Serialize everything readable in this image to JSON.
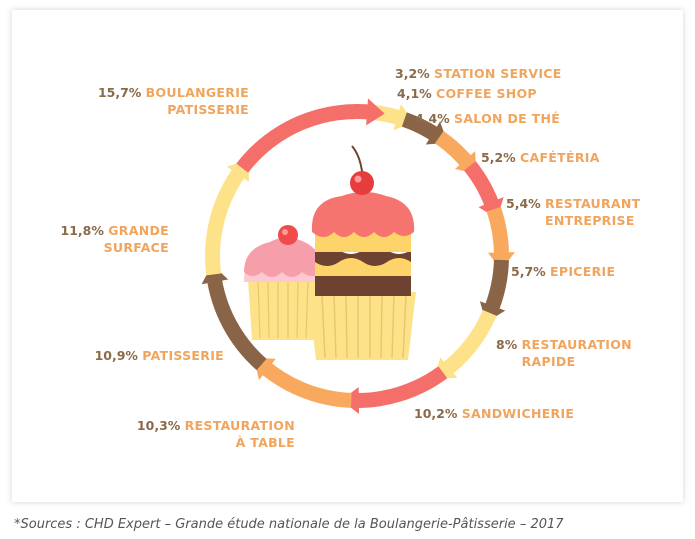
{
  "chart_data": {
    "type": "pie",
    "title": "",
    "slices": [
      {
        "value": 3.2,
        "value_label": "3,2%",
        "lines": [
          "STATION SERVICE"
        ],
        "color": "#fde28a"
      },
      {
        "value": 4.1,
        "value_label": "4,1%",
        "lines": [
          "COFFEE SHOP"
        ],
        "color": "#8a6446"
      },
      {
        "value": 4.4,
        "value_label": "4,4%",
        "lines": [
          "SALON DE THÉ"
        ],
        "color": "#f8a95e"
      },
      {
        "value": 5.2,
        "value_label": "5,2%",
        "lines": [
          "CAFÉTÉRIA"
        ],
        "color": "#f56f6a"
      },
      {
        "value": 5.4,
        "value_label": "5,4%",
        "lines": [
          "RESTAURANT",
          "ENTREPRISE"
        ],
        "color": "#f8a95e"
      },
      {
        "value": 5.7,
        "value_label": "5,7%",
        "lines": [
          "EPICERIE"
        ],
        "color": "#8a6446"
      },
      {
        "value": 8.0,
        "value_label": "8%",
        "lines": [
          "RESTAURATION",
          "RAPIDE"
        ],
        "color": "#fde28a"
      },
      {
        "value": 10.2,
        "value_label": "10,2%",
        "lines": [
          "SANDWICHERIE"
        ],
        "color": "#f56f6a"
      },
      {
        "value": 10.3,
        "value_label": "10,3%",
        "lines": [
          "RESTAURATION",
          "À TABLE"
        ],
        "color": "#f8a95e"
      },
      {
        "value": 10.9,
        "value_label": "10,9%",
        "lines": [
          "PATISSERIE"
        ],
        "color": "#8a6446"
      },
      {
        "value": 11.8,
        "value_label": "11,8%",
        "lines": [
          "GRANDE",
          "SURFACE"
        ],
        "color": "#fde28a"
      },
      {
        "value": 15.7,
        "value_label": "15,7%",
        "lines": [
          "BOULANGERIE",
          "PATISSERIE"
        ],
        "color": "#f56f6a"
      }
    ],
    "colors": {
      "percent_text": "#8b6a49",
      "category_text": "#f0a45c"
    }
  },
  "source": "*Sources : CHD Expert – Grande étude nationale de la Boulangerie-Pâtisserie – 2017"
}
